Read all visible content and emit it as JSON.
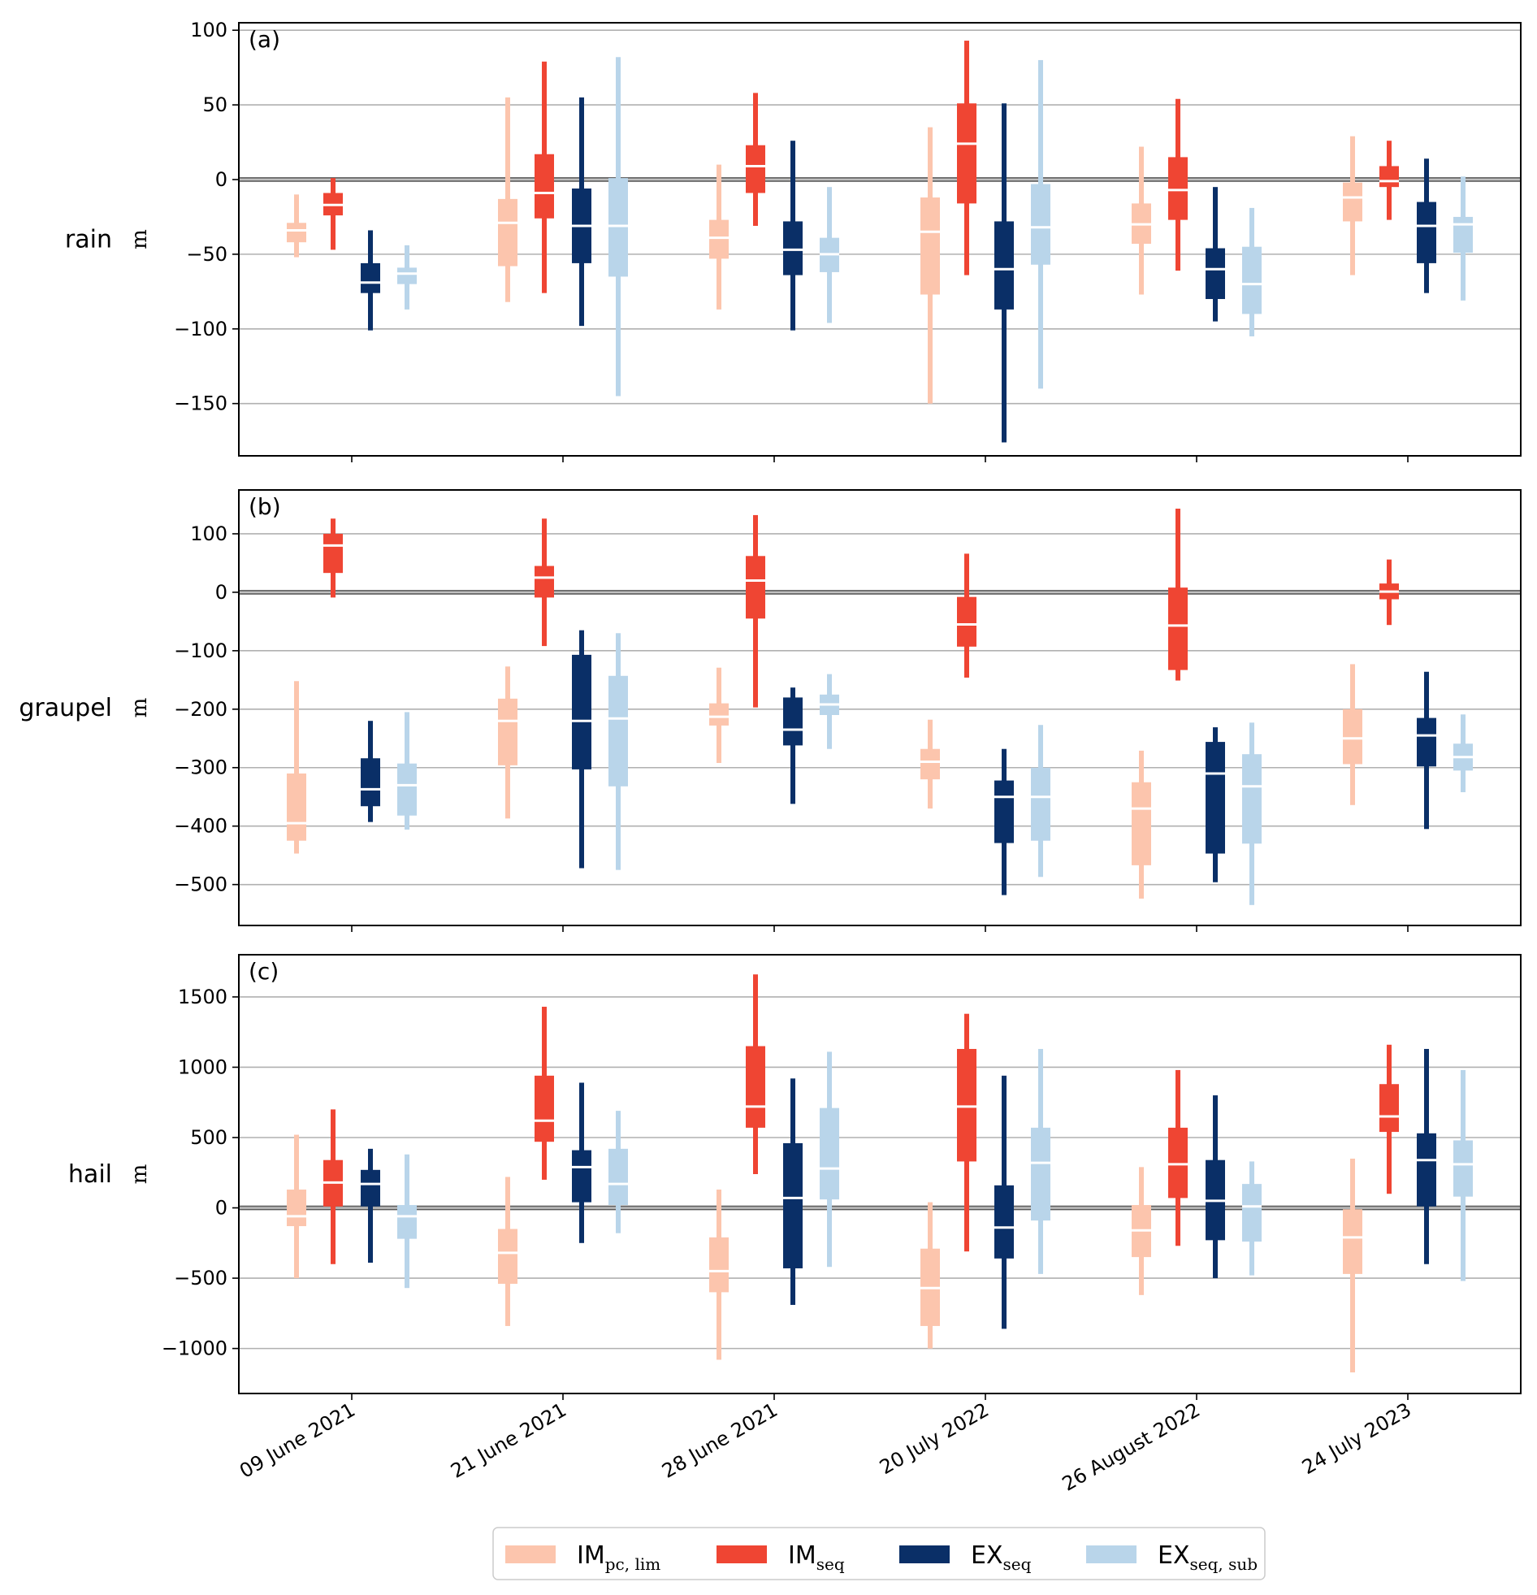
{
  "chart_data": {
    "type": "boxplot",
    "categories": [
      "09 June 2021",
      "21 June 2021",
      "28 June 2021",
      "20 July 2022",
      "26 August 2022",
      "24 July 2023"
    ],
    "series": [
      {
        "name": "IM",
        "sub": "pc, lim",
        "color": "#fcc5ad"
      },
      {
        "name": "IM",
        "sub": "seq",
        "color": "#ef4533"
      },
      {
        "name": "EX",
        "sub": "seq",
        "color": "#0a2f67"
      },
      {
        "name": "EX",
        "sub": "seq, sub",
        "color": "#b9d5ea"
      }
    ],
    "panels": [
      {
        "label": "(a)",
        "ylabel": "rain",
        "unit": "m",
        "ylim": [
          -185,
          105
        ],
        "yticks": [
          100,
          50,
          0,
          -50,
          -100,
          -150
        ],
        "ytick_labels": [
          "100",
          "50",
          "0",
          "−50",
          "−100",
          "−150"
        ],
        "boxes": [
          [
            [
              -52,
              -42,
              -34,
              -29,
              -10
            ],
            [
              -47,
              -24,
              -17,
              -9,
              1
            ],
            [
              -101,
              -76,
              -69,
              -56,
              -34
            ],
            [
              -87,
              -70,
              -63,
              -59,
              -44
            ]
          ],
          [
            [
              -82,
              -58,
              -29,
              -13,
              55
            ],
            [
              -76,
              -26,
              -9,
              17,
              79
            ],
            [
              -98,
              -56,
              -31,
              -6,
              55
            ],
            [
              -145,
              -65,
              -31,
              1,
              82
            ]
          ],
          [
            [
              -87,
              -53,
              -39,
              -27,
              10
            ],
            [
              -31,
              -9,
              9,
              23,
              58
            ],
            [
              -101,
              -64,
              -47,
              -28,
              26
            ],
            [
              -96,
              -62,
              -50,
              -39,
              -5
            ]
          ],
          [
            [
              -150,
              -77,
              -35,
              -12,
              35
            ],
            [
              -64,
              -16,
              24,
              51,
              93
            ],
            [
              -176,
              -87,
              -60,
              -28,
              51
            ],
            [
              -140,
              -57,
              -32,
              -3,
              80
            ]
          ],
          [
            [
              -77,
              -43,
              -30,
              -16,
              22
            ],
            [
              -61,
              -27,
              -7,
              15,
              54
            ],
            [
              -95,
              -80,
              -60,
              -46,
              -5
            ],
            [
              -105,
              -90,
              -70,
              -45,
              -19
            ]
          ],
          [
            [
              -64,
              -28,
              -12,
              -2,
              29
            ],
            [
              -27,
              -5,
              -1,
              9,
              26
            ],
            [
              -76,
              -56,
              -31,
              -15,
              14
            ],
            [
              -81,
              -49,
              -30,
              -25,
              2
            ]
          ]
        ]
      },
      {
        "label": "(b)",
        "ylabel": "graupel",
        "unit": "m",
        "ylim": [
          -570,
          175
        ],
        "yticks": [
          100,
          0,
          -100,
          -200,
          -300,
          -400,
          -500
        ],
        "ytick_labels": [
          "100",
          "0",
          "−100",
          "−200",
          "−300",
          "−400",
          "−500"
        ],
        "boxes": [
          [
            [
              -447,
              -425,
              -395,
              -310,
              -152
            ],
            [
              -9,
              33,
              80,
              100,
              126
            ],
            [
              -393,
              -366,
              -337,
              -284,
              -220
            ],
            [
              -406,
              -382,
              -330,
              -293,
              -205
            ]
          ],
          [
            [
              -387,
              -296,
              -220,
              -182,
              -127
            ],
            [
              -92,
              -9,
              25,
              45,
              126
            ],
            [
              -472,
              -303,
              -220,
              -107,
              -65
            ],
            [
              -475,
              -332,
              -216,
              -143,
              -70
            ]
          ],
          [
            [
              -292,
              -228,
              -213,
              -190,
              -129
            ],
            [
              -197,
              -45,
              20,
              62,
              132
            ],
            [
              -362,
              -262,
              -235,
              -180,
              -163
            ],
            [
              -268,
              -210,
              -192,
              -175,
              -140
            ]
          ],
          [
            [
              -370,
              -320,
              -290,
              -268,
              -218
            ],
            [
              -146,
              -93,
              -55,
              -8,
              66
            ],
            [
              -518,
              -429,
              -350,
              -322,
              -268
            ],
            [
              -487,
              -425,
              -350,
              -300,
              -227
            ]
          ],
          [
            [
              -524,
              -467,
              -370,
              -325,
              -271
            ],
            [
              -151,
              -133,
              -57,
              8,
              143
            ],
            [
              -496,
              -447,
              -310,
              -256,
              -231
            ],
            [
              -535,
              -430,
              -332,
              -277,
              -223
            ]
          ],
          [
            [
              -364,
              -294,
              -250,
              -200,
              -123
            ],
            [
              -56,
              -12,
              1,
              15,
              56
            ],
            [
              -405,
              -298,
              -245,
              -215,
              -136
            ],
            [
              -342,
              -305,
              -282,
              -259,
              -209
            ]
          ]
        ]
      },
      {
        "label": "(c)",
        "ylabel": "hail",
        "unit": "m",
        "ylim": [
          -1320,
          1800
        ],
        "yticks": [
          1500,
          1000,
          500,
          0,
          -500,
          -1000
        ],
        "ytick_labels": [
          "1500",
          "1000",
          "500",
          "0",
          "−500",
          "−1000"
        ],
        "boxes": [
          [
            [
              -500,
              -130,
              -60,
              130,
              520
            ],
            [
              -400,
              10,
              180,
              340,
              700
            ],
            [
              -390,
              10,
              170,
              270,
              420
            ],
            [
              -570,
              -220,
              -60,
              20,
              380
            ]
          ],
          [
            [
              -840,
              -540,
              -320,
              -150,
              220
            ],
            [
              200,
              470,
              620,
              940,
              1430
            ],
            [
              -250,
              40,
              290,
              410,
              890
            ],
            [
              -180,
              20,
              170,
              420,
              690
            ]
          ],
          [
            [
              -1080,
              -600,
              -450,
              -210,
              130
            ],
            [
              240,
              570,
              720,
              1150,
              1660
            ],
            [
              -690,
              -430,
              70,
              460,
              920
            ],
            [
              -420,
              60,
              280,
              710,
              1110
            ]
          ],
          [
            [
              -1000,
              -840,
              -570,
              -290,
              40
            ],
            [
              -310,
              330,
              720,
              1130,
              1380
            ],
            [
              -860,
              -360,
              -140,
              160,
              940
            ],
            [
              -470,
              -90,
              320,
              570,
              1130
            ]
          ],
          [
            [
              -620,
              -350,
              -160,
              20,
              290
            ],
            [
              -270,
              70,
              310,
              570,
              980
            ],
            [
              -500,
              -230,
              50,
              340,
              800
            ],
            [
              -480,
              -240,
              10,
              170,
              330
            ]
          ],
          [
            [
              -1170,
              -470,
              -210,
              -10,
              350
            ],
            [
              100,
              540,
              650,
              880,
              1160
            ],
            [
              -400,
              10,
              340,
              530,
              1130
            ],
            [
              -520,
              80,
              310,
              480,
              980
            ]
          ]
        ]
      }
    ]
  }
}
